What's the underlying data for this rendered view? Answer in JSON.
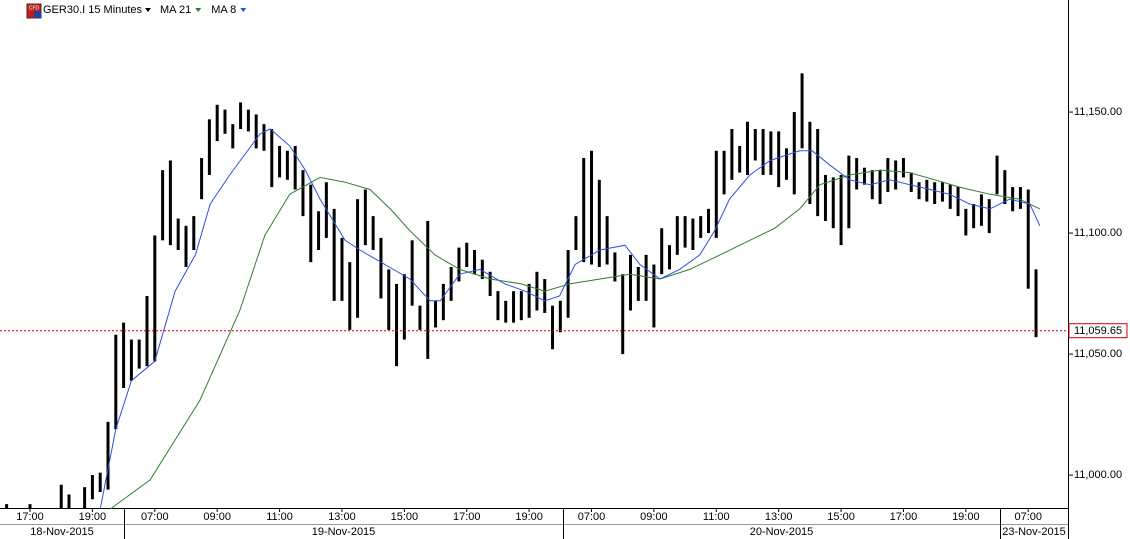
{
  "chart_data": {
    "type": "ohlc",
    "title": "GER30.I 15 Minutes",
    "icon_label": "CFD",
    "xlim": [
      -0.85,
      136.1
    ],
    "ylim": [
      10986.4,
      11196.3
    ],
    "yticks": [
      {
        "value": 11000,
        "label": "11,000.00"
      },
      {
        "value": 11050,
        "label": "11,050.00"
      },
      {
        "value": 11100,
        "label": "11,100.00"
      },
      {
        "value": 11150,
        "label": "11,150.00"
      }
    ],
    "xticks": [
      {
        "value": 3,
        "label": "17:00"
      },
      {
        "value": 11,
        "label": "19:00"
      },
      {
        "value": 19,
        "label": "07:00"
      },
      {
        "value": 27,
        "label": "09:00"
      },
      {
        "value": 35,
        "label": "11:00"
      },
      {
        "value": 43,
        "label": "13:00"
      },
      {
        "value": 51,
        "label": "15:00"
      },
      {
        "value": 59,
        "label": "17:00"
      },
      {
        "value": 67,
        "label": "19:00"
      },
      {
        "value": 75,
        "label": "07:00"
      },
      {
        "value": 83,
        "label": "09:00"
      },
      {
        "value": 91,
        "label": "11:00"
      },
      {
        "value": 99,
        "label": "13:00"
      },
      {
        "value": 107,
        "label": "15:00"
      },
      {
        "value": 115,
        "label": "17:00"
      },
      {
        "value": 123,
        "label": "19:00"
      },
      {
        "value": 131,
        "label": "07:00"
      }
    ],
    "dates": [
      "18-Nov-2015",
      "19-Nov-2015",
      "20-Nov-2015",
      "23-Nov-2015"
    ],
    "bar_color": "#000000",
    "high": [
      10988,
      null,
      null,
      10988,
      null,
      null,
      null,
      10996,
      10992,
      null,
      10995,
      11000,
      11001,
      11022,
      11058,
      11063,
      11056,
      11056,
      11074,
      11099,
      11126,
      11130,
      11106,
      11103,
      11107,
      11131,
      11147,
      11153,
      11151,
      11145,
      11154,
      11151,
      11149,
      11145,
      11143,
      11136,
      11134,
      11136,
      11126,
      11120,
      11109,
      11121,
      11110,
      11098,
      11088,
      11114,
      11118,
      11107,
      11098,
      11085,
      11079,
      11083,
      11097,
      11070,
      11105,
      11072,
      11079,
      11086,
      11094,
      11096,
      11093,
      11089,
      11084,
      11076,
      11072,
      11076,
      11076,
      11079,
      11084,
      11081,
      11070,
      11072,
      11093,
      11107,
      11131,
      11134,
      11122,
      11107,
      11092,
      11083,
      11091,
      11086,
      11091,
      11087,
      11102,
      11095,
      11107,
      11107,
      11106,
      11107,
      11110,
      11134,
      11134,
      11143,
      11136,
      11146,
      11143,
      11143,
      11142,
      11142,
      11135,
      11150,
      11166,
      11146,
      11143,
      11124,
      11123,
      11124,
      11132,
      11131,
      11127,
      11126,
      11126,
      11131,
      11130,
      11131,
      11125,
      11121,
      11122,
      11121,
      11121,
      11120,
      11119,
      11110,
      11112,
      11116,
      11114,
      11132,
      11126,
      11119,
      11119,
      11118,
      11085
    ],
    "low": [
      10986,
      null,
      null,
      10986,
      null,
      null,
      null,
      10986,
      10986,
      null,
      10986,
      10990,
      10993,
      10994,
      11019,
      11036,
      11039,
      11044,
      11045,
      11047,
      11097,
      11095,
      11093,
      11086,
      11093,
      11114,
      11124,
      11138,
      11141,
      11135,
      11143,
      11142,
      11135,
      11134,
      11119,
      11123,
      11122,
      11118,
      11107,
      11088,
      11093,
      11098,
      11072,
      11072,
      11060,
      11065,
      11095,
      11093,
      11073,
      11060,
      11045,
      11056,
      11070,
      11060,
      11048,
      11061,
      11064,
      11072,
      11080,
      11086,
      11083,
      11081,
      11074,
      11064,
      11063,
      11063,
      11064,
      11065,
      11068,
      11067,
      11052,
      11059,
      11065,
      11093,
      11088,
      11087,
      11086,
      11087,
      11080,
      11050,
      11068,
      11072,
      11072,
      11061,
      11083,
      11085,
      11091,
      11094,
      11093,
      11098,
      11100,
      11098,
      11116,
      11122,
      11125,
      11124,
      11130,
      11124,
      11124,
      11119,
      11122,
      11116,
      11135,
      11112,
      11107,
      11105,
      11102,
      11095,
      11102,
      11118,
      11120,
      11114,
      11112,
      11117,
      11118,
      11123,
      11117,
      11114,
      11113,
      11112,
      11113,
      11110,
      11107,
      11099,
      11102,
      11103,
      11100,
      11116,
      11112,
      11109,
      11110,
      11077,
      11057
    ],
    "series": [
      {
        "name": "MA 21",
        "color": "#2f7d2f",
        "x": [
          13.3,
          18.4,
          24.8,
          29.9,
          33.1,
          36.3,
          40.2,
          43.4,
          46.6,
          49.2,
          51.7,
          54.9,
          58.1,
          62.0,
          66.0,
          69.0,
          72.2,
          76.1,
          79.9,
          83.8,
          87.6,
          91.5,
          95.3,
          98.5,
          101.7,
          104.3,
          108.1,
          112.0,
          115.8,
          119.0,
          122.2,
          126.1,
          129.9,
          132.5
        ],
        "values": [
          10986,
          10998,
          11031,
          11068,
          11099,
          11116,
          11123,
          11121,
          11118,
          11110,
          11101,
          11091,
          11085,
          11081,
          11079,
          11076,
          11079,
          11081,
          11083,
          11081,
          11085,
          11091,
          11097,
          11102,
          11110,
          11120,
          11124,
          11126,
          11125,
          11122,
          11119,
          11116,
          11114,
          11110
        ]
      },
      {
        "name": "MA 8",
        "color": "#2f4fe0",
        "x": [
          12.0,
          14.0,
          16.0,
          19.0,
          21.6,
          24.2,
          26.1,
          28.6,
          32.5,
          33.8,
          36.3,
          38.3,
          40.2,
          43.4,
          45.3,
          48.5,
          51.7,
          54.3,
          55.6,
          58.1,
          60.7,
          63.9,
          66.5,
          69.0,
          70.9,
          72.9,
          76.1,
          79.3,
          81.2,
          83.8,
          86.3,
          88.9,
          90.8,
          92.7,
          95.3,
          97.9,
          99.8,
          101.7,
          103.3,
          105.6,
          108.1,
          110.7,
          113.2,
          115.8,
          118.4,
          120.9,
          123.5,
          126.1,
          128.6,
          131.2,
          132.5
        ],
        "values": [
          10986,
          11019,
          11039,
          11047,
          11076,
          11091,
          11112,
          11124,
          11141,
          11143,
          11136,
          11126,
          11114,
          11097,
          11093,
          11087,
          11081,
          11072,
          11072,
          11083,
          11085,
          11079,
          11076,
          11072,
          11074,
          11087,
          11093,
          11095,
          11087,
          11081,
          11085,
          11091,
          11101,
          11114,
          11124,
          11130,
          11132,
          11134,
          11134,
          11128,
          11122,
          11120,
          11122,
          11120,
          11118,
          11116,
          11112,
          11110,
          11114,
          11112,
          11103
        ]
      }
    ],
    "last_price": 11059.65,
    "last_price_label": "11,059.65",
    "last_price_color": "#d00000"
  }
}
